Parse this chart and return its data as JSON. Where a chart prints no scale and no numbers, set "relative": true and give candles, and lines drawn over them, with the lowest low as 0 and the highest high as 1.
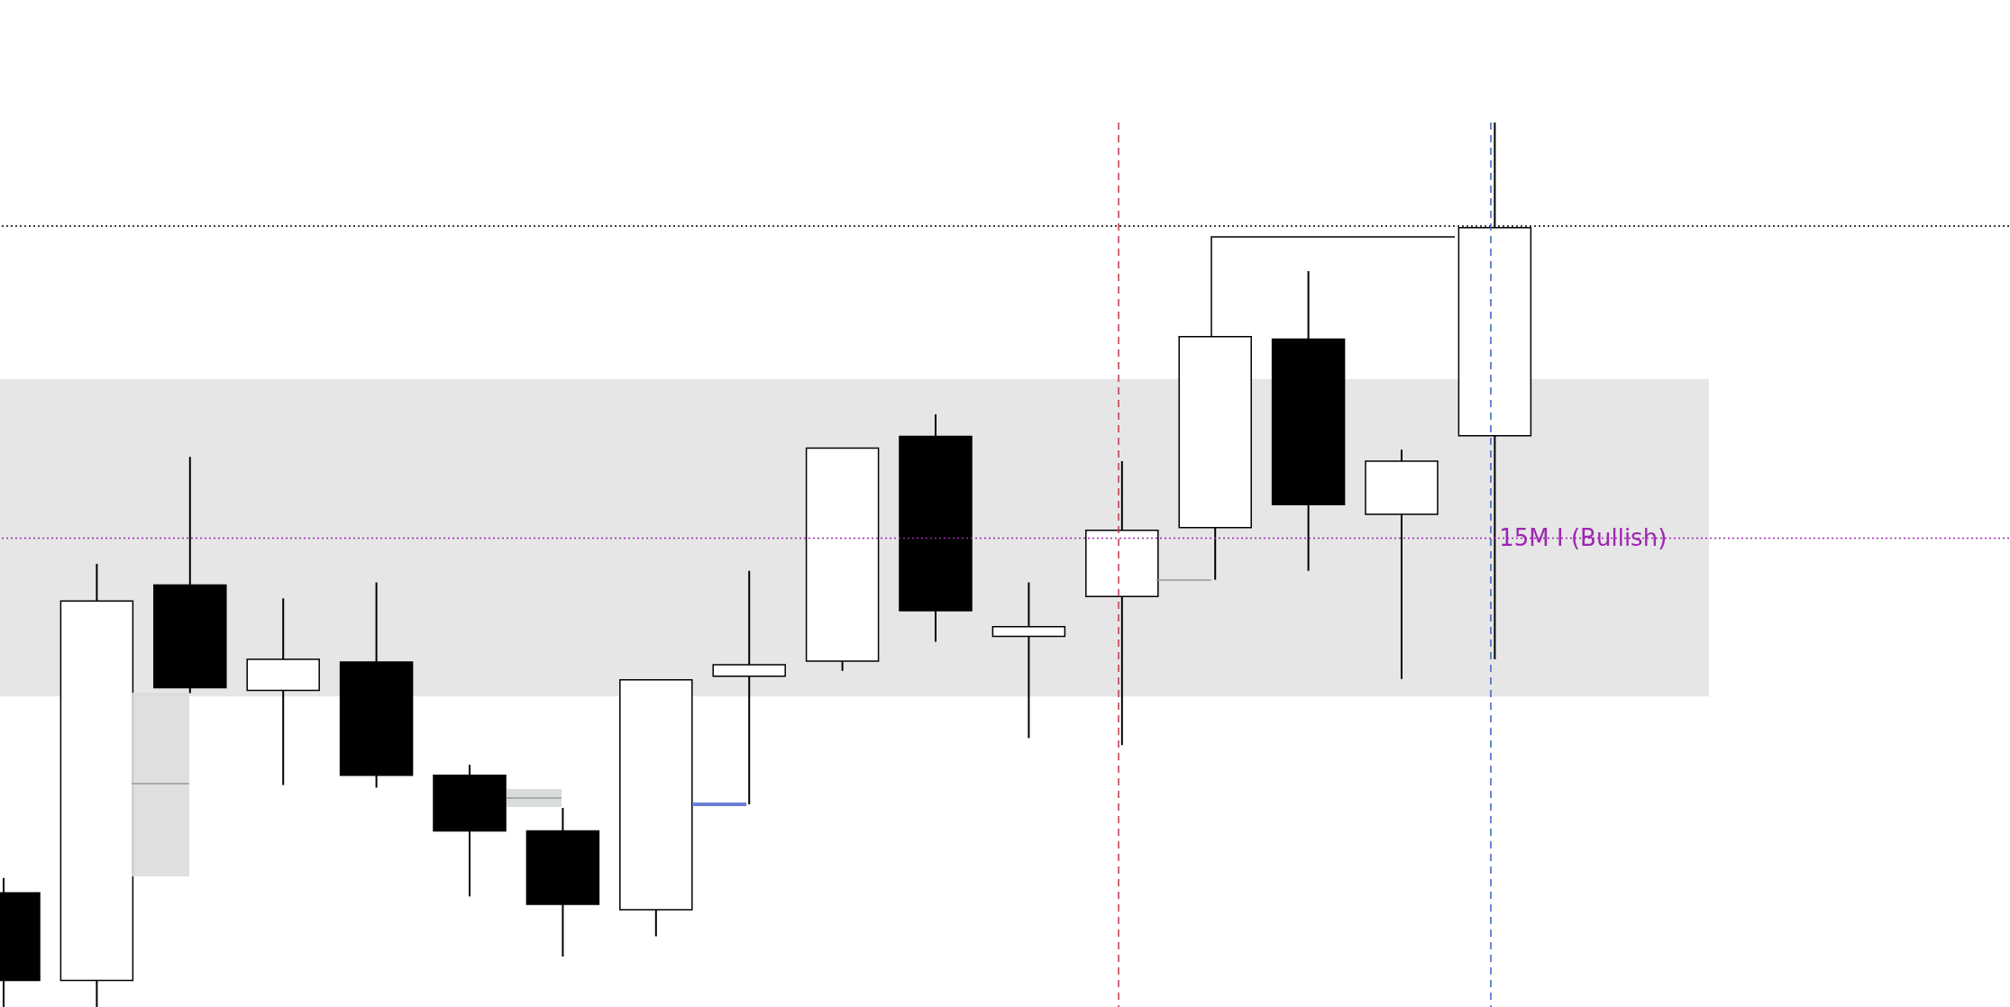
{
  "chart_data": {
    "type": "candlestick",
    "relative": true,
    "categories": [
      null,
      null,
      null,
      null,
      null,
      null,
      null,
      null,
      null,
      null,
      null,
      null,
      null,
      null,
      null,
      null,
      null
    ],
    "ohlc": [
      [
        0.129,
        0.146,
        0,
        0.03
      ],
      [
        0.03,
        0.501,
        0,
        0.459
      ],
      [
        0.477,
        0.622,
        0.355,
        0.361
      ],
      [
        0.358,
        0.462,
        0.251,
        0.393
      ],
      [
        0.39,
        0.48,
        0.248,
        0.262
      ],
      [
        0.262,
        0.274,
        0.125,
        0.199
      ],
      [
        0.199,
        0.225,
        0.057,
        0.116
      ],
      [
        0.11,
        0.37,
        0.08,
        0.37
      ],
      [
        0.374,
        0.493,
        0.229,
        0.387
      ],
      [
        0.391,
        0.632,
        0.38,
        0.632
      ],
      [
        0.645,
        0.67,
        0.413,
        0.448
      ],
      [
        0.419,
        0.48,
        0.304,
        0.43
      ],
      [
        0.464,
        0.617,
        0.296,
        0.539
      ],
      [
        0.542,
        0.758,
        0.483,
        0.758
      ],
      [
        0.755,
        0.832,
        0.493,
        0.568
      ],
      [
        0.557,
        0.63,
        0.371,
        0.617
      ],
      [
        0.646,
        1,
        0.393,
        0.881
      ]
    ],
    "ref_lines": [
      {
        "axis": "y",
        "value": 0.883,
        "label": null,
        "color": "#000000",
        "line_style": "dotted"
      },
      {
        "axis": "y",
        "value": 0.53,
        "label": "15M I (Bullish)",
        "color": "#9c27b0",
        "line_style": "dotted"
      }
    ],
    "bands": [
      {
        "axis": "y",
        "from": 0.351,
        "to": 0.71,
        "label": null,
        "color": "#e6e6e6"
      }
    ],
    "tick_labels": false
  }
}
